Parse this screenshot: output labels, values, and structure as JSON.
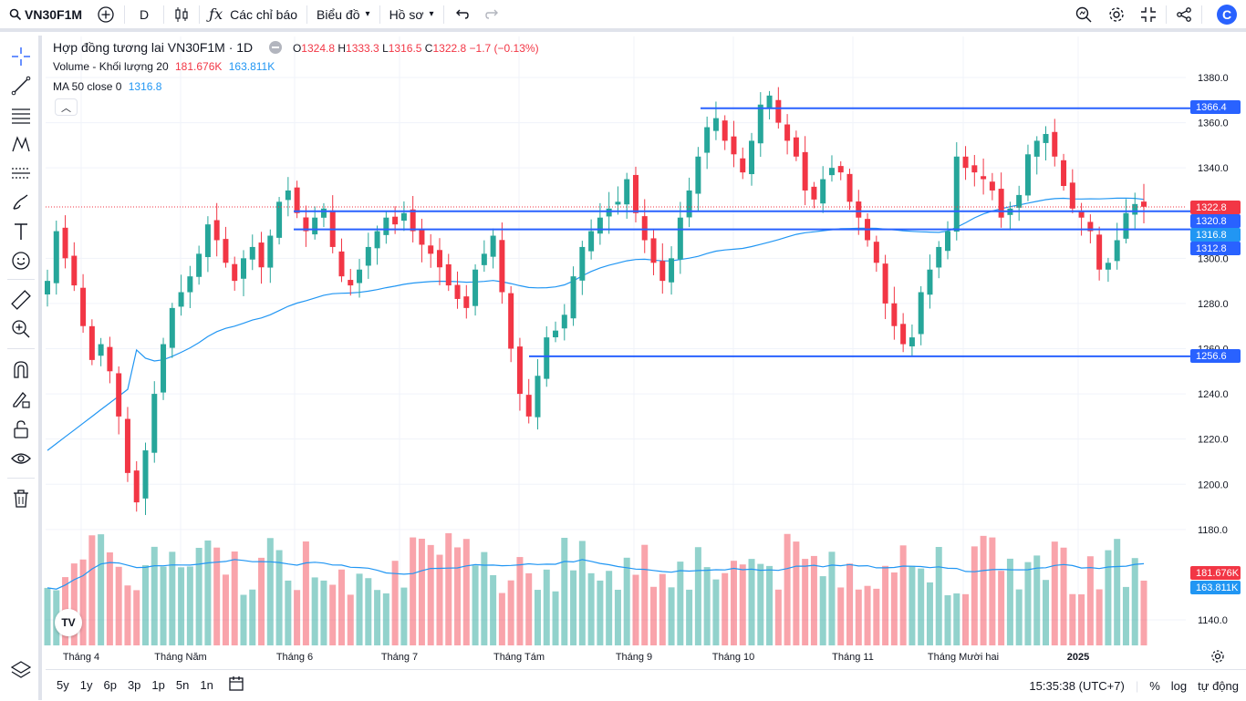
{
  "toolbar": {
    "symbol": "VN30F1M",
    "interval": "D",
    "indicators_label": "Các chỉ báo",
    "chart_label": "Biểu đồ",
    "profile_label": "Hồ sơ",
    "logo_letter": "C"
  },
  "legend": {
    "title": "Hợp đồng tương lai VN30F1M · 1D",
    "open_label": "O",
    "open": "1324.8",
    "high_label": "H",
    "high": "1333.3",
    "low_label": "L",
    "low": "1316.5",
    "close_label": "C",
    "close": "1322.8",
    "change": "−1.7 (−0.13%)",
    "volume_label": "Volume - Khối lượng 20",
    "volume_value": "181.676K",
    "volume_ma": "163.811K",
    "ma_label": "MA 50 close 0",
    "ma_value": "1316.8"
  },
  "price_axis": [
    "1380.0",
    "1360.0",
    "1340.0",
    "1300.0",
    "1280.0",
    "1260.0",
    "1240.0",
    "1220.0",
    "1200.0",
    "1180.0",
    "1140.0"
  ],
  "price_labels": {
    "line_1366": "1366.4",
    "last": "1322.8",
    "level_1320": "1320.8",
    "ma": "1316.8",
    "level_1312": "1312.8",
    "line_1256": "1256.6",
    "volume": "181.676K",
    "volume_ma": "163.811K"
  },
  "time_axis": [
    "Tháng 4",
    "Tháng Năm",
    "Tháng 6",
    "Tháng 7",
    "Tháng Tám",
    "Tháng 9",
    "Tháng 10",
    "Tháng 11",
    "Tháng Mười hai",
    "2025"
  ],
  "bottom": {
    "ranges": [
      "5y",
      "1y",
      "6p",
      "3p",
      "1p",
      "5n",
      "1n"
    ],
    "time": "15:35:38 (UTC+7)",
    "percent": "%",
    "log": "log",
    "auto": "tự động"
  },
  "colors": {
    "up": "#26a69a",
    "down": "#f23645",
    "ma": "#2196f3",
    "hline": "#2962ff"
  },
  "chart_data": {
    "type": "candlestick",
    "price_range": [
      1130,
      1390
    ],
    "horizontal_lines": [
      1366.4,
      1320.8,
      1312.8,
      1256.6
    ],
    "ma50_last": 1316.8,
    "last_close": 1322.8,
    "closes": [
      1290,
      1312,
      1300,
      1288,
      1270,
      1255,
      1262,
      1250,
      1230,
      1205,
      1192,
      1215,
      1240,
      1262,
      1278,
      1285,
      1292,
      1302,
      1315,
      1308,
      1298,
      1290,
      1300,
      1305,
      1296,
      1310,
      1325,
      1330,
      1320,
      1312,
      1318,
      1322,
      1305,
      1292,
      1288,
      1295,
      1305,
      1312,
      1318,
      1315,
      1320,
      1312,
      1306,
      1302,
      1296,
      1288,
      1282,
      1278,
      1295,
      1302,
      1310,
      1285,
      1260,
      1240,
      1230,
      1248,
      1265,
      1268,
      1275,
      1292,
      1305,
      1312,
      1318,
      1322,
      1325,
      1335,
      1320,
      1308,
      1298,
      1290,
      1300,
      1318,
      1330,
      1345,
      1358,
      1362,
      1352,
      1346,
      1338,
      1352,
      1368,
      1372,
      1360,
      1352,
      1345,
      1330,
      1326,
      1335,
      1340,
      1338,
      1325,
      1318,
      1308,
      1298,
      1280,
      1270,
      1262,
      1265,
      1285,
      1295,
      1305,
      1312,
      1345,
      1340,
      1338,
      1335,
      1330,
      1318,
      1322,
      1328,
      1346,
      1352,
      1355,
      1345,
      1332,
      1322,
      1318,
      1312,
      1295,
      1298,
      1308,
      1320,
      1324,
      1322.8
    ]
  }
}
